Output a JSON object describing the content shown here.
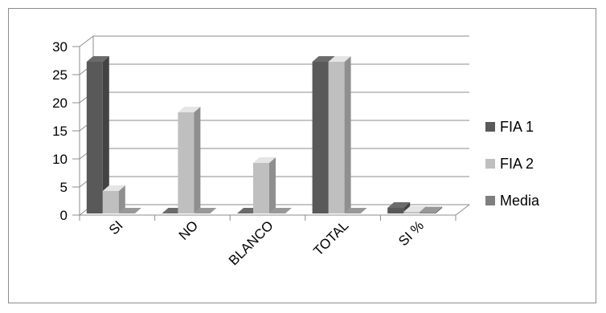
{
  "chart_data": {
    "type": "bar",
    "title": "",
    "xlabel": "",
    "ylabel": "",
    "categories": [
      "SI",
      "NO",
      "BLANCO",
      "TOTAL",
      "SI %"
    ],
    "series": [
      {
        "name": "FIA 1",
        "values": [
          27,
          0,
          0,
          27,
          1
        ]
      },
      {
        "name": "FIA 2",
        "values": [
          4,
          18,
          9,
          27,
          0.3
        ]
      },
      {
        "name": "Media",
        "values": [
          0,
          0,
          0,
          0,
          0.2
        ]
      }
    ],
    "yticks": [
      "0",
      "5",
      "10",
      "15",
      "20",
      "25",
      "30"
    ],
    "ylim": [
      0,
      30
    ],
    "grid": true,
    "legend_position": "right",
    "style": "3d-clustered-column",
    "colors": {
      "FIA 1": "#595959",
      "FIA 2": "#bfbfbf",
      "Media": "#7f7f7f",
      "gridline": "#8c8c8c"
    }
  }
}
